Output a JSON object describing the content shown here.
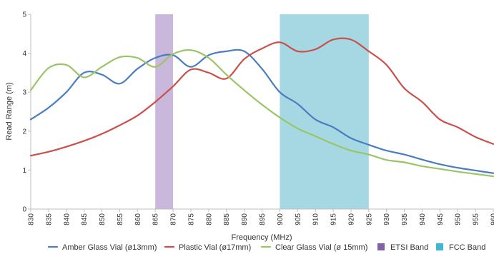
{
  "chart_data": {
    "type": "line",
    "xlabel": "Frequency (MHz)",
    "ylabel": "Read Range (m)",
    "xlim": [
      830,
      960
    ],
    "ylim": [
      0,
      5
    ],
    "grid": false,
    "legend_placement": "bottom",
    "x_ticks": [
      "830",
      "835",
      "840",
      "845",
      "850",
      "855",
      "860",
      "865",
      "870",
      "875",
      "880",
      "885",
      "890",
      "895",
      "900",
      "905",
      "910",
      "915",
      "920",
      "925",
      "930",
      "935",
      "940",
      "945",
      "950",
      "955",
      "960"
    ],
    "y_ticks": [
      "0",
      "1",
      "2",
      "3",
      "4",
      "5"
    ],
    "bands": [
      {
        "name": "ETSI Band",
        "x_start": 865,
        "x_end": 870,
        "color": "#c9b8db"
      },
      {
        "name": "FCC Band",
        "x_start": 900,
        "x_end": 925,
        "color": "#a6d8e4"
      }
    ],
    "series": [
      {
        "name": "Amber Glass Vial (ø13mm)",
        "color": "#4a7dbf",
        "x": [
          830,
          835,
          840,
          845,
          850,
          855,
          860,
          865,
          870,
          875,
          880,
          885,
          890,
          895,
          900,
          905,
          910,
          915,
          920,
          925,
          930,
          935,
          940,
          945,
          950,
          955,
          960
        ],
        "values": [
          2.3,
          2.6,
          3.0,
          3.5,
          3.45,
          3.22,
          3.6,
          3.88,
          3.95,
          3.65,
          3.95,
          4.05,
          4.05,
          3.6,
          3.0,
          2.7,
          2.3,
          2.1,
          1.82,
          1.65,
          1.5,
          1.4,
          1.27,
          1.15,
          1.06,
          0.99,
          0.92
        ]
      },
      {
        "name": "Plastic Vial (ø17mm)",
        "color": "#c9504b",
        "x": [
          830,
          835,
          840,
          845,
          850,
          855,
          860,
          865,
          870,
          875,
          880,
          885,
          890,
          895,
          900,
          905,
          910,
          915,
          920,
          925,
          930,
          935,
          940,
          945,
          950,
          955,
          960
        ],
        "values": [
          1.37,
          1.47,
          1.6,
          1.75,
          1.93,
          2.15,
          2.4,
          2.75,
          3.15,
          3.58,
          3.5,
          3.35,
          3.85,
          4.12,
          4.28,
          4.05,
          4.1,
          4.35,
          4.35,
          4.05,
          3.7,
          3.1,
          2.75,
          2.3,
          2.1,
          1.85,
          1.67
        ]
      },
      {
        "name": "Clear Glass Vial (ø 15mm)",
        "color": "#9bc467",
        "x": [
          830,
          835,
          840,
          845,
          850,
          855,
          860,
          865,
          870,
          875,
          880,
          885,
          890,
          895,
          900,
          905,
          910,
          915,
          920,
          925,
          930,
          935,
          940,
          945,
          950,
          955,
          960
        ],
        "values": [
          3.05,
          3.62,
          3.7,
          3.38,
          3.65,
          3.9,
          3.88,
          3.65,
          3.98,
          4.08,
          3.88,
          3.45,
          3.05,
          2.68,
          2.35,
          2.07,
          1.87,
          1.67,
          1.5,
          1.4,
          1.26,
          1.2,
          1.1,
          1.03,
          0.96,
          0.9,
          0.84
        ]
      }
    ]
  }
}
